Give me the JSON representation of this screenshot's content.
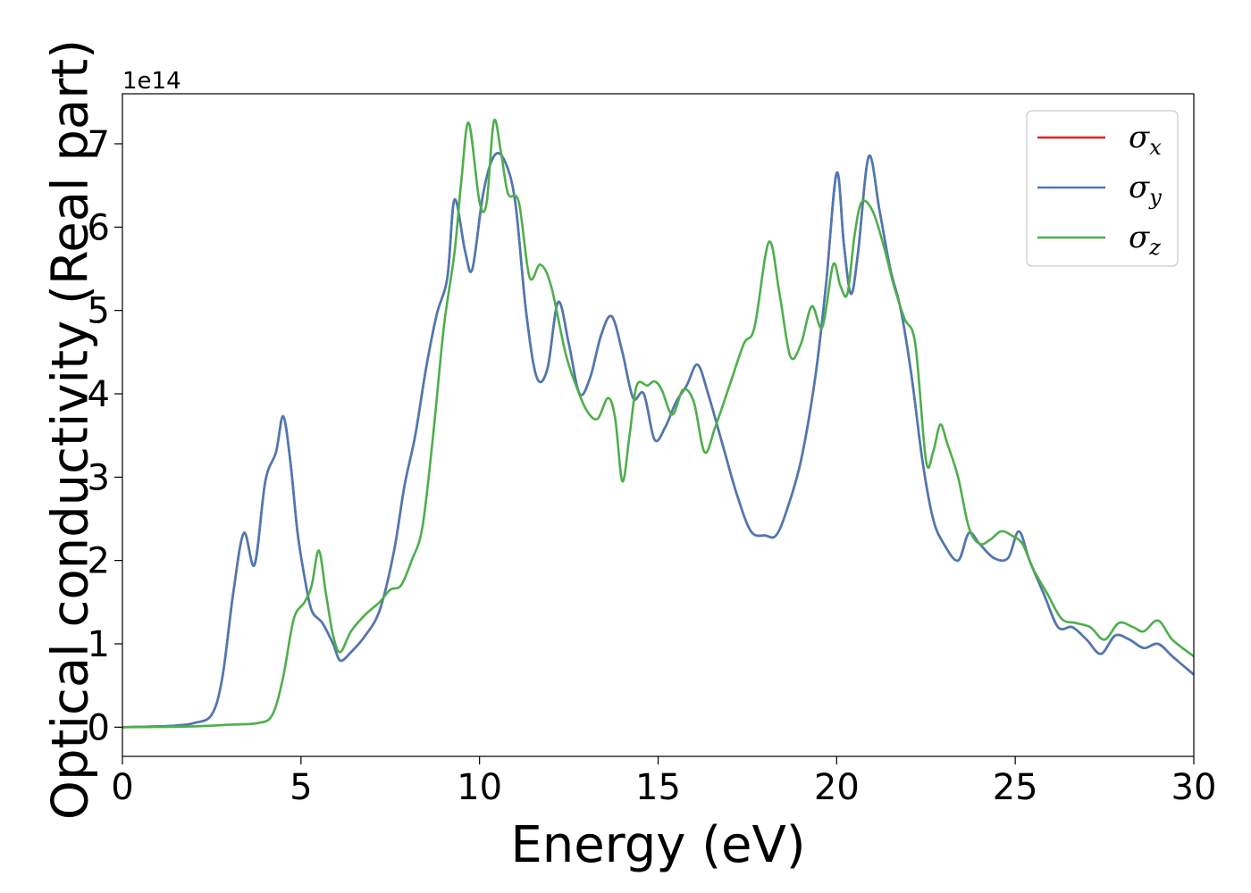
{
  "chart_data": {
    "type": "line",
    "title": "",
    "xlabel": "Energy (eV)",
    "ylabel": "Optical conductivity (Real part)",
    "y_offset_label": "1e14",
    "xlim": [
      0,
      30
    ],
    "ylim": [
      -0.35,
      7.6
    ],
    "x_ticks": [
      0,
      5,
      10,
      15,
      20,
      25,
      30
    ],
    "y_ticks": [
      0,
      1,
      2,
      3,
      4,
      5,
      6,
      7
    ],
    "grid": false,
    "legend_position": "top-right",
    "series": [
      {
        "name": "σx",
        "symbol": "σ",
        "subscript": "x",
        "color": "#d62728",
        "points": [
          [
            0,
            0
          ],
          [
            1,
            0.01
          ],
          [
            1.5,
            0.02
          ],
          [
            2,
            0.05
          ],
          [
            2.5,
            0.15
          ],
          [
            2.8,
            0.6
          ],
          [
            3.1,
            1.6
          ],
          [
            3.4,
            2.33
          ],
          [
            3.7,
            1.95
          ],
          [
            4.0,
            2.95
          ],
          [
            4.3,
            3.3
          ],
          [
            4.5,
            3.73
          ],
          [
            4.7,
            3.2
          ],
          [
            4.9,
            2.35
          ],
          [
            5.1,
            1.8
          ],
          [
            5.3,
            1.4
          ],
          [
            5.6,
            1.25
          ],
          [
            5.9,
            1.0
          ],
          [
            6.1,
            0.8
          ],
          [
            6.4,
            0.9
          ],
          [
            6.8,
            1.1
          ],
          [
            7.2,
            1.4
          ],
          [
            7.6,
            2.1
          ],
          [
            7.9,
            2.9
          ],
          [
            8.2,
            3.5
          ],
          [
            8.5,
            4.3
          ],
          [
            8.8,
            4.95
          ],
          [
            9.1,
            5.4
          ],
          [
            9.3,
            6.33
          ],
          [
            9.6,
            5.7
          ],
          [
            9.8,
            5.5
          ],
          [
            10.1,
            6.4
          ],
          [
            10.4,
            6.85
          ],
          [
            10.7,
            6.8
          ],
          [
            11.0,
            6.3
          ],
          [
            11.3,
            5.0
          ],
          [
            11.6,
            4.2
          ],
          [
            11.9,
            4.3
          ],
          [
            12.2,
            5.1
          ],
          [
            12.5,
            4.6
          ],
          [
            12.8,
            4.0
          ],
          [
            13.1,
            4.2
          ],
          [
            13.4,
            4.7
          ],
          [
            13.7,
            4.93
          ],
          [
            14.0,
            4.5
          ],
          [
            14.3,
            3.95
          ],
          [
            14.6,
            4.0
          ],
          [
            14.9,
            3.45
          ],
          [
            15.2,
            3.6
          ],
          [
            15.5,
            3.9
          ],
          [
            15.8,
            4.1
          ],
          [
            16.1,
            4.35
          ],
          [
            16.4,
            4.0
          ],
          [
            16.8,
            3.4
          ],
          [
            17.2,
            2.8
          ],
          [
            17.6,
            2.35
          ],
          [
            18.0,
            2.3
          ],
          [
            18.3,
            2.3
          ],
          [
            18.6,
            2.6
          ],
          [
            19.0,
            3.2
          ],
          [
            19.4,
            4.2
          ],
          [
            19.7,
            5.3
          ],
          [
            20.0,
            6.65
          ],
          [
            20.2,
            5.8
          ],
          [
            20.4,
            5.2
          ],
          [
            20.6,
            5.7
          ],
          [
            20.9,
            6.85
          ],
          [
            21.2,
            6.2
          ],
          [
            21.5,
            5.5
          ],
          [
            21.8,
            5.0
          ],
          [
            22.1,
            4.2
          ],
          [
            22.4,
            3.2
          ],
          [
            22.7,
            2.5
          ],
          [
            23.0,
            2.2
          ],
          [
            23.4,
            2.0
          ],
          [
            23.7,
            2.33
          ],
          [
            24.0,
            2.2
          ],
          [
            24.4,
            2.03
          ],
          [
            24.8,
            2.03
          ],
          [
            25.1,
            2.35
          ],
          [
            25.4,
            2.0
          ],
          [
            25.8,
            1.6
          ],
          [
            26.2,
            1.2
          ],
          [
            26.6,
            1.2
          ],
          [
            27.0,
            1.05
          ],
          [
            27.4,
            0.88
          ],
          [
            27.8,
            1.1
          ],
          [
            28.2,
            1.05
          ],
          [
            28.6,
            0.95
          ],
          [
            29.0,
            1.0
          ],
          [
            29.4,
            0.85
          ],
          [
            30.0,
            0.63
          ]
        ]
      },
      {
        "name": "σy",
        "symbol": "σ",
        "subscript": "y",
        "color": "#4a7ab5",
        "points": [
          [
            0,
            0
          ],
          [
            1,
            0.01
          ],
          [
            1.5,
            0.02
          ],
          [
            2,
            0.05
          ],
          [
            2.5,
            0.15
          ],
          [
            2.8,
            0.6
          ],
          [
            3.1,
            1.6
          ],
          [
            3.4,
            2.33
          ],
          [
            3.7,
            1.95
          ],
          [
            4.0,
            2.95
          ],
          [
            4.3,
            3.3
          ],
          [
            4.5,
            3.73
          ],
          [
            4.7,
            3.2
          ],
          [
            4.9,
            2.35
          ],
          [
            5.1,
            1.8
          ],
          [
            5.3,
            1.4
          ],
          [
            5.6,
            1.25
          ],
          [
            5.9,
            1.0
          ],
          [
            6.1,
            0.8
          ],
          [
            6.4,
            0.9
          ],
          [
            6.8,
            1.1
          ],
          [
            7.2,
            1.4
          ],
          [
            7.6,
            2.1
          ],
          [
            7.9,
            2.9
          ],
          [
            8.2,
            3.5
          ],
          [
            8.5,
            4.3
          ],
          [
            8.8,
            4.95
          ],
          [
            9.1,
            5.4
          ],
          [
            9.3,
            6.33
          ],
          [
            9.6,
            5.7
          ],
          [
            9.8,
            5.5
          ],
          [
            10.1,
            6.4
          ],
          [
            10.4,
            6.85
          ],
          [
            10.7,
            6.8
          ],
          [
            11.0,
            6.3
          ],
          [
            11.3,
            5.0
          ],
          [
            11.6,
            4.2
          ],
          [
            11.9,
            4.3
          ],
          [
            12.2,
            5.1
          ],
          [
            12.5,
            4.6
          ],
          [
            12.8,
            4.0
          ],
          [
            13.1,
            4.2
          ],
          [
            13.4,
            4.7
          ],
          [
            13.7,
            4.93
          ],
          [
            14.0,
            4.5
          ],
          [
            14.3,
            3.95
          ],
          [
            14.6,
            4.0
          ],
          [
            14.9,
            3.45
          ],
          [
            15.2,
            3.6
          ],
          [
            15.5,
            3.9
          ],
          [
            15.8,
            4.1
          ],
          [
            16.1,
            4.35
          ],
          [
            16.4,
            4.0
          ],
          [
            16.8,
            3.4
          ],
          [
            17.2,
            2.8
          ],
          [
            17.6,
            2.35
          ],
          [
            18.0,
            2.3
          ],
          [
            18.3,
            2.3
          ],
          [
            18.6,
            2.6
          ],
          [
            19.0,
            3.2
          ],
          [
            19.4,
            4.2
          ],
          [
            19.7,
            5.3
          ],
          [
            20.0,
            6.65
          ],
          [
            20.2,
            5.8
          ],
          [
            20.4,
            5.2
          ],
          [
            20.6,
            5.7
          ],
          [
            20.9,
            6.85
          ],
          [
            21.2,
            6.2
          ],
          [
            21.5,
            5.5
          ],
          [
            21.8,
            5.0
          ],
          [
            22.1,
            4.2
          ],
          [
            22.4,
            3.2
          ],
          [
            22.7,
            2.5
          ],
          [
            23.0,
            2.2
          ],
          [
            23.4,
            2.0
          ],
          [
            23.7,
            2.33
          ],
          [
            24.0,
            2.2
          ],
          [
            24.4,
            2.03
          ],
          [
            24.8,
            2.03
          ],
          [
            25.1,
            2.35
          ],
          [
            25.4,
            2.0
          ],
          [
            25.8,
            1.6
          ],
          [
            26.2,
            1.2
          ],
          [
            26.6,
            1.2
          ],
          [
            27.0,
            1.05
          ],
          [
            27.4,
            0.88
          ],
          [
            27.8,
            1.1
          ],
          [
            28.2,
            1.05
          ],
          [
            28.6,
            0.95
          ],
          [
            29.0,
            1.0
          ],
          [
            29.4,
            0.85
          ],
          [
            30.0,
            0.63
          ]
        ]
      },
      {
        "name": "σz",
        "symbol": "σ",
        "subscript": "z",
        "color": "#4daf4a",
        "points": [
          [
            0,
            0
          ],
          [
            2,
            0.01
          ],
          [
            3,
            0.03
          ],
          [
            3.8,
            0.05
          ],
          [
            4.2,
            0.15
          ],
          [
            4.5,
            0.6
          ],
          [
            4.8,
            1.3
          ],
          [
            5.1,
            1.5
          ],
          [
            5.3,
            1.7
          ],
          [
            5.5,
            2.12
          ],
          [
            5.7,
            1.6
          ],
          [
            5.9,
            1.1
          ],
          [
            6.1,
            0.9
          ],
          [
            6.4,
            1.15
          ],
          [
            6.8,
            1.35
          ],
          [
            7.2,
            1.5
          ],
          [
            7.5,
            1.65
          ],
          [
            7.8,
            1.7
          ],
          [
            8.1,
            2.0
          ],
          [
            8.4,
            2.4
          ],
          [
            8.7,
            3.5
          ],
          [
            9.0,
            4.8
          ],
          [
            9.3,
            5.7
          ],
          [
            9.5,
            6.6
          ],
          [
            9.7,
            7.25
          ],
          [
            10.0,
            6.3
          ],
          [
            10.2,
            6.3
          ],
          [
            10.4,
            7.27
          ],
          [
            10.6,
            6.9
          ],
          [
            10.8,
            6.4
          ],
          [
            11.1,
            6.3
          ],
          [
            11.4,
            5.4
          ],
          [
            11.7,
            5.55
          ],
          [
            12.0,
            5.3
          ],
          [
            12.4,
            4.5
          ],
          [
            12.7,
            4.1
          ],
          [
            13.0,
            3.8
          ],
          [
            13.3,
            3.7
          ],
          [
            13.6,
            3.95
          ],
          [
            13.8,
            3.7
          ],
          [
            14.0,
            2.95
          ],
          [
            14.2,
            3.5
          ],
          [
            14.4,
            4.1
          ],
          [
            14.7,
            4.1
          ],
          [
            14.9,
            4.15
          ],
          [
            15.1,
            4.05
          ],
          [
            15.4,
            3.75
          ],
          [
            15.7,
            4.05
          ],
          [
            16.0,
            3.9
          ],
          [
            16.3,
            3.3
          ],
          [
            16.6,
            3.6
          ],
          [
            17.0,
            4.1
          ],
          [
            17.4,
            4.6
          ],
          [
            17.7,
            4.8
          ],
          [
            18.1,
            5.82
          ],
          [
            18.4,
            5.2
          ],
          [
            18.7,
            4.45
          ],
          [
            19.0,
            4.6
          ],
          [
            19.3,
            5.05
          ],
          [
            19.6,
            4.8
          ],
          [
            19.9,
            5.55
          ],
          [
            20.1,
            5.3
          ],
          [
            20.3,
            5.2
          ],
          [
            20.5,
            5.9
          ],
          [
            20.7,
            6.3
          ],
          [
            21.0,
            6.2
          ],
          [
            21.3,
            5.8
          ],
          [
            21.6,
            5.3
          ],
          [
            21.9,
            4.9
          ],
          [
            22.2,
            4.6
          ],
          [
            22.5,
            3.2
          ],
          [
            22.7,
            3.3
          ],
          [
            22.9,
            3.63
          ],
          [
            23.1,
            3.4
          ],
          [
            23.4,
            3.0
          ],
          [
            23.7,
            2.4
          ],
          [
            24.0,
            2.2
          ],
          [
            24.3,
            2.25
          ],
          [
            24.6,
            2.35
          ],
          [
            24.9,
            2.3
          ],
          [
            25.2,
            2.2
          ],
          [
            25.5,
            1.9
          ],
          [
            25.9,
            1.6
          ],
          [
            26.3,
            1.3
          ],
          [
            26.7,
            1.25
          ],
          [
            27.1,
            1.2
          ],
          [
            27.5,
            1.05
          ],
          [
            27.9,
            1.25
          ],
          [
            28.3,
            1.2
          ],
          [
            28.6,
            1.15
          ],
          [
            29.0,
            1.28
          ],
          [
            29.4,
            1.05
          ],
          [
            30.0,
            0.85
          ]
        ]
      }
    ]
  }
}
